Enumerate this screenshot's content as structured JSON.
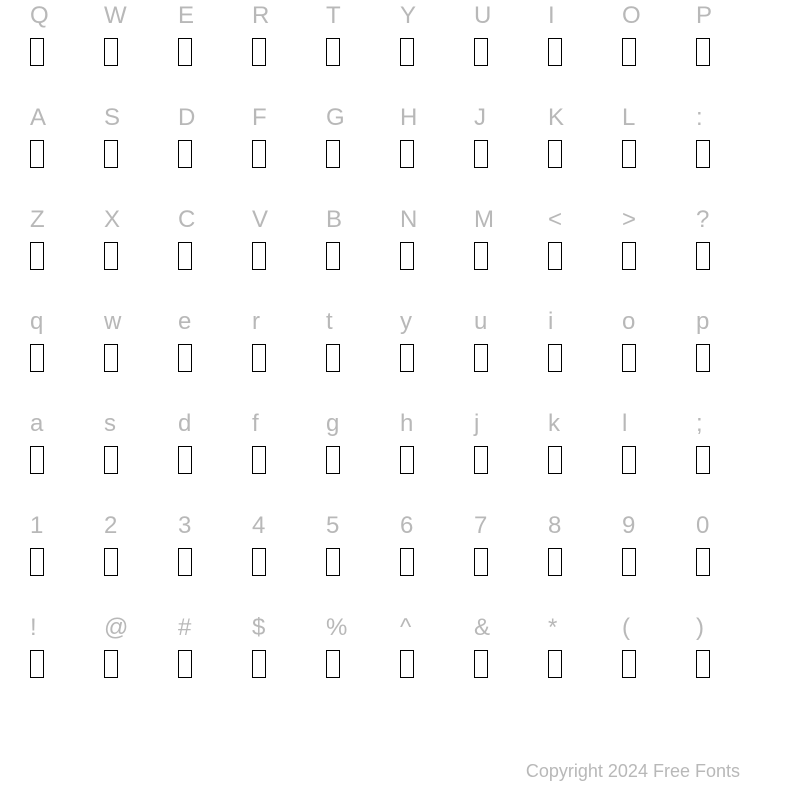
{
  "rows": [
    [
      "Q",
      "W",
      "E",
      "R",
      "T",
      "Y",
      "U",
      "I",
      "O",
      "P"
    ],
    [
      "A",
      "S",
      "D",
      "F",
      "G",
      "H",
      "J",
      "K",
      "L",
      ":"
    ],
    [
      "Z",
      "X",
      "C",
      "V",
      "B",
      "N",
      "M",
      "<",
      ">",
      "?"
    ],
    [
      "q",
      "w",
      "e",
      "r",
      "t",
      "y",
      "u",
      "i",
      "o",
      "p"
    ],
    [
      "a",
      "s",
      "d",
      "f",
      "g",
      "h",
      "j",
      "k",
      "l",
      ";"
    ],
    [
      "1",
      "2",
      "3",
      "4",
      "5",
      "6",
      "7",
      "8",
      "9",
      "0"
    ],
    [
      "!",
      "@",
      "#",
      "$",
      "%",
      "^",
      "&",
      "*",
      "(",
      ")"
    ]
  ],
  "copyright": "Copyright 2024 Free Fonts",
  "styling": {
    "background_color": "#ffffff",
    "label_color": "#b8b8b8",
    "label_fontsize": 24,
    "glyph_box_width": 14,
    "glyph_box_height": 28,
    "glyph_box_border_color": "#000000",
    "glyph_box_border_width": 1.5,
    "copyright_color": "#b8b8b8",
    "copyright_fontsize": 18,
    "columns": 10,
    "grid_padding_x": 30
  }
}
